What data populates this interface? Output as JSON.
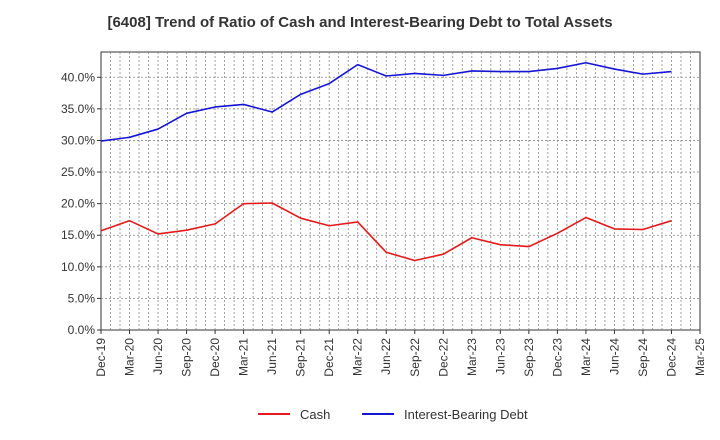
{
  "chart_data": {
    "type": "line",
    "title": "[6408]  Trend of Ratio of Cash and Interest-Bearing Debt to Total Assets",
    "xlabel": "",
    "ylabel": "",
    "ylim": [
      0,
      44
    ],
    "yticks": [
      "0.0%",
      "5.0%",
      "10.0%",
      "15.0%",
      "20.0%",
      "25.0%",
      "30.0%",
      "35.0%",
      "40.0%"
    ],
    "grid": true,
    "legend_position": "bottom",
    "categories": [
      "Dec-19",
      "Mar-20",
      "Jun-20",
      "Sep-20",
      "Dec-20",
      "Mar-21",
      "Jun-21",
      "Sep-21",
      "Dec-21",
      "Mar-22",
      "Jun-22",
      "Sep-22",
      "Dec-22",
      "Mar-23",
      "Jun-23",
      "Sep-23",
      "Dec-23",
      "Mar-24",
      "Jun-24",
      "Sep-24",
      "Dec-24",
      "Mar-25"
    ],
    "series": [
      {
        "name": "Cash",
        "color": "#e31a1c",
        "values": [
          15.7,
          17.3,
          15.2,
          15.8,
          16.8,
          20.0,
          20.1,
          17.7,
          16.5,
          17.1,
          12.3,
          11.0,
          12.0,
          14.6,
          13.5,
          13.2,
          15.3,
          17.8,
          16.0,
          15.9,
          17.3,
          null
        ]
      },
      {
        "name": "Interest-Bearing Debt",
        "color": "#1515d4",
        "values": [
          29.9,
          30.5,
          31.8,
          34.3,
          35.3,
          35.7,
          34.5,
          37.3,
          39.0,
          42.0,
          40.2,
          40.6,
          40.3,
          41.0,
          40.9,
          40.9,
          41.4,
          42.3,
          41.3,
          40.5,
          40.9,
          null
        ]
      }
    ]
  }
}
